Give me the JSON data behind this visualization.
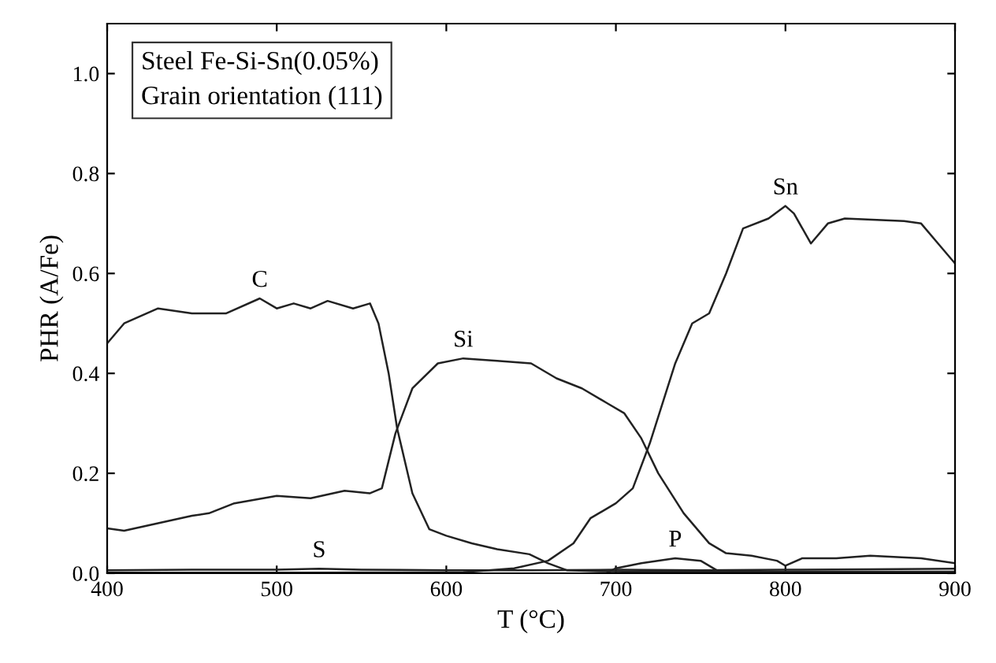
{
  "chart_data": {
    "type": "line",
    "xlabel": "T (°C)",
    "ylabel": "PHR (A/Fe)",
    "annotations": [
      "Steel Fe-Si-Sn(0.05%)\nGrain orientation (111)"
    ],
    "xlim": [
      400,
      900
    ],
    "ylim": [
      0,
      1.1
    ],
    "xticks": [
      400,
      500,
      600,
      700,
      800,
      900
    ],
    "yticks": [
      {
        "value": 0,
        "label": "0.0"
      },
      0.2,
      0.4,
      0.6,
      0.8,
      {
        "value": 1.0,
        "label": "1.0"
      }
    ],
    "grid": false,
    "legend": false,
    "marker": "none",
    "line_style": "solid",
    "series": [
      {
        "name": "C",
        "color": "#222222",
        "x": [
          400,
          410,
          430,
          450,
          470,
          490,
          500,
          510,
          520,
          530,
          545,
          555,
          560,
          566,
          571,
          580,
          590,
          600,
          615,
          630,
          649,
          660,
          671,
          690,
          720,
          760,
          800,
          850,
          900
        ],
        "values": [
          0.46,
          0.5,
          0.53,
          0.52,
          0.52,
          0.55,
          0.53,
          0.54,
          0.53,
          0.545,
          0.53,
          0.54,
          0.5,
          0.4,
          0.29,
          0.16,
          0.088,
          0.075,
          0.06,
          0.048,
          0.038,
          0.02,
          0.006,
          0.004,
          0.003,
          0.003,
          0.003,
          0.003,
          0.003
        ]
      },
      {
        "name": "Si",
        "color": "#222222",
        "x": [
          400,
          410,
          430,
          450,
          460,
          475,
          500,
          520,
          540,
          555,
          562,
          570,
          580,
          595,
          610,
          630,
          650,
          665,
          680,
          695,
          705,
          715,
          725,
          740,
          755,
          765,
          780,
          795,
          800,
          810,
          830,
          850,
          880,
          900
        ],
        "values": [
          0.09,
          0.085,
          0.1,
          0.115,
          0.12,
          0.14,
          0.155,
          0.15,
          0.165,
          0.16,
          0.17,
          0.28,
          0.37,
          0.42,
          0.43,
          0.425,
          0.42,
          0.39,
          0.37,
          0.34,
          0.32,
          0.27,
          0.2,
          0.12,
          0.06,
          0.04,
          0.035,
          0.025,
          0.015,
          0.03,
          0.03,
          0.035,
          0.03,
          0.02
        ]
      },
      {
        "name": "Sn",
        "color": "#222222",
        "x": [
          400,
          500,
          610,
          640,
          660,
          675,
          685,
          700,
          710,
          720,
          735,
          745,
          755,
          765,
          775,
          790,
          800,
          805,
          815,
          825,
          835,
          870,
          880,
          890,
          900
        ],
        "values": [
          0.001,
          0.001,
          0.002,
          0.01,
          0.025,
          0.06,
          0.11,
          0.14,
          0.17,
          0.26,
          0.42,
          0.5,
          0.52,
          0.6,
          0.69,
          0.71,
          0.735,
          0.72,
          0.66,
          0.7,
          0.71,
          0.705,
          0.7,
          0.66,
          0.62
        ]
      },
      {
        "name": "S",
        "color": "#222222",
        "x": [
          400,
          450,
          500,
          525,
          550,
          600,
          650,
          700,
          750,
          800,
          850,
          900
        ],
        "values": [
          0.006,
          0.007,
          0.007,
          0.009,
          0.007,
          0.006,
          0.006,
          0.007,
          0.006,
          0.007,
          0.008,
          0.009
        ]
      },
      {
        "name": "P",
        "color": "#222222",
        "x": [
          695,
          700,
          715,
          735,
          750,
          760,
          770
        ],
        "values": [
          0.001,
          0.01,
          0.02,
          0.03,
          0.025,
          0.005,
          0.001
        ]
      }
    ]
  }
}
